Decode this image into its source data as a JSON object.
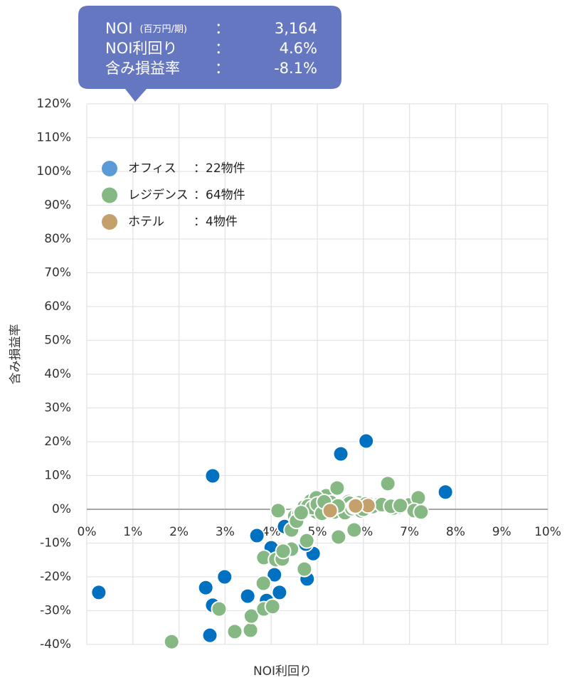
{
  "chart_data": {
    "type": "scatter",
    "x_label": "NOI利回り",
    "y_label": "含み損益率",
    "xlim": [
      0,
      10
    ],
    "ylim": [
      -40,
      120
    ],
    "xticks": [
      {
        "value": 0,
        "label": "0%"
      },
      {
        "value": 1,
        "label": "1%"
      },
      {
        "value": 2,
        "label": "2%"
      },
      {
        "value": 3,
        "label": "3%"
      },
      {
        "value": 4,
        "label": "4%"
      },
      {
        "value": 5,
        "label": "5%"
      },
      {
        "value": 6,
        "label": "6%"
      },
      {
        "value": 7,
        "label": "7%"
      },
      {
        "value": 8,
        "label": "8%"
      },
      {
        "value": 9,
        "label": "9%"
      },
      {
        "value": 10,
        "label": "10%"
      }
    ],
    "yticks": [
      {
        "value": -40,
        "label": "-40%"
      },
      {
        "value": -30,
        "label": "-30%"
      },
      {
        "value": -20,
        "label": "-20%"
      },
      {
        "value": -10,
        "label": "-10%"
      },
      {
        "value": 0,
        "label": "0%"
      },
      {
        "value": 10,
        "label": "10%"
      },
      {
        "value": 20,
        "label": "20%"
      },
      {
        "value": 30,
        "label": "30%"
      },
      {
        "value": 40,
        "label": "40%"
      },
      {
        "value": 50,
        "label": "50%"
      },
      {
        "value": 60,
        "label": "60%"
      },
      {
        "value": 70,
        "label": "70%"
      },
      {
        "value": 80,
        "label": "80%"
      },
      {
        "value": 90,
        "label": "90%"
      },
      {
        "value": 100,
        "label": "100%"
      },
      {
        "value": 110,
        "label": "110%"
      },
      {
        "value": 120,
        "label": "120%"
      }
    ],
    "grid": true,
    "legend_position": "upper left",
    "series": [
      {
        "name": "オフィス",
        "legend_count": "：22物件",
        "color": "#0070c0",
        "legend_color": "#5b9bd5",
        "x": [
          0.26,
          2.73,
          2.58,
          2.73,
          2.67,
          2.99,
          3.49,
          3.69,
          4.0,
          4.07,
          4.18,
          4.29,
          4.91,
          4.78,
          4.75,
          5.51,
          6.06,
          7.78,
          5.37,
          5.83,
          6.76,
          3.9
        ],
        "values": [
          -24.6,
          9.9,
          -23.2,
          -28.4,
          -37.3,
          -20,
          -25.7,
          -7.8,
          -11.4,
          -19.4,
          -24.6,
          -5.1,
          -13.1,
          -20.6,
          -10.3,
          16.4,
          20.2,
          5.1,
          0.8,
          0.4,
          0.6,
          -27
        ]
      },
      {
        "name": "レジデンス",
        "legend_count": "：64物件",
        "color": "#86b884",
        "legend_color": "#86b884",
        "x": [
          1.84,
          2.87,
          3.21,
          3.55,
          3.57,
          3.84,
          4.03,
          3.83,
          3.84,
          4.1,
          4.24,
          4.44,
          4.26,
          4.72,
          4.77,
          4.15,
          4.44,
          4.51,
          4.72,
          4.86,
          4.98,
          5.19,
          5.25,
          5.43,
          5.46,
          5.59,
          5.68,
          5.8,
          5.91,
          5.99,
          6.14,
          6.3,
          6.53,
          6.65,
          6.99,
          7.19,
          7.1,
          7.25,
          5.09,
          4.98,
          5.37,
          5.65,
          4.6,
          4.8,
          4.9,
          5.0,
          5.1,
          5.3,
          5.5,
          5.6,
          5.7,
          5.75,
          5.85,
          5.95,
          6.05,
          6.2,
          6.4,
          6.6,
          6.8,
          4.55,
          4.65,
          5.15,
          5.45,
          6.0
        ],
        "values": [
          -39.2,
          -29.5,
          -36.2,
          -35.8,
          -31.6,
          -29.5,
          -28.8,
          -21.9,
          -14.3,
          -14.9,
          -14.7,
          -11.8,
          -12.4,
          -17.7,
          -9.3,
          -0.4,
          -6.1,
          -2.1,
          0.8,
          2.5,
          -0.8,
          4,
          0.8,
          6.3,
          -8.2,
          -0.2,
          2.3,
          -6.1,
          1.9,
          0.8,
          1.5,
          1.3,
          7.6,
          0.4,
          1.3,
          3.4,
          -0.4,
          -0.8,
          0.2,
          3.4,
          -0.8,
          -0.8,
          -1.5,
          1.0,
          0.5,
          1.5,
          -1.2,
          2.0,
          0.5,
          -1.0,
          1.8,
          0.2,
          1.2,
          -0.5,
          1.6,
          0.8,
          1.4,
          0.9,
          1.1,
          -3.5,
          -1.0,
          2.2,
          1.0,
          0.0
        ]
      },
      {
        "name": "ホテル",
        "legend_count": "：4物件",
        "color": "#c4a06a",
        "legend_color": "#c4a06a",
        "x": [
          5.28,
          5.8,
          6.1,
          5.83
        ],
        "values": [
          -0.4,
          0.8,
          1.1,
          1.0
        ]
      }
    ]
  },
  "tooltip": {
    "rows": [
      {
        "label": "NOI",
        "note": "(百万円/期)",
        "sep": "：",
        "value": "3,164"
      },
      {
        "label": "NOI利回り",
        "sep": "：",
        "value": "4.6%"
      },
      {
        "label": "含み損益率",
        "sep": "：",
        "value": "-8.1%"
      }
    ]
  }
}
